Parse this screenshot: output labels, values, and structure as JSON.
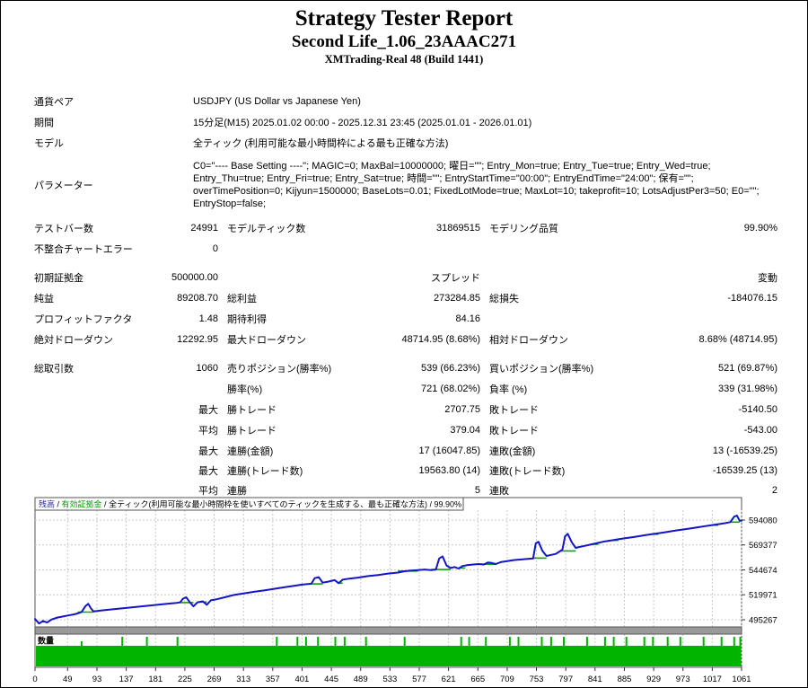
{
  "header": {
    "title": "Strategy Tester Report",
    "subtitle": "Second Life_1.06_23AAAC271",
    "server": "XMTrading-Real 48 (Build 1441)"
  },
  "info_rows": [
    {
      "label": "通貨ペア",
      "value": "USDJPY (US Dollar vs Japanese Yen)"
    },
    {
      "label": "期間",
      "value": "15分足(M15) 2025.01.02 00:00 - 2025.12.31 23:45 (2025.01.01 - 2026.01.01)"
    },
    {
      "label": "モデル",
      "value": "全ティック (利用可能な最小時間枠による最も正確な方法)"
    }
  ],
  "parameters": {
    "label": "パラメーター",
    "lines": [
      "C0=\"---- Base Setting ----\"; MAGIC=0; MaxBal=10000000; 曜日=\"\"; Entry_Mon=true; Entry_Tue=true; Entry_Wed=true;",
      "Entry_Thu=true; Entry_Fri=true; Entry_Sat=true; 時間=\"\"; EntryStartTime=\"00:00\"; EntryEndTime=\"24:00\"; 保有=\"\";",
      "overTimePosition=0; Kijyun=1500000; BaseLots=0.01; FixedLotMode=true; MaxLot=10; takeprofit=10; LotsAdjustPer3=50; E0=\"\";",
      "EntryStop=false;"
    ]
  },
  "stat_rows": [
    {
      "cells": [
        "テストバー数",
        "24991",
        "モデルティック数",
        "31869515",
        "モデリング品質",
        "99.90%"
      ]
    },
    {
      "cells": [
        "不整合チャートエラー",
        "0",
        "",
        "",
        "",
        ""
      ]
    },
    {
      "gap": true,
      "cells": [
        "初期証拠金",
        "500000.00",
        "",
        "スプレッド",
        "",
        "変動"
      ]
    },
    {
      "cells": [
        "純益",
        "89208.70",
        "総利益",
        "273284.85",
        "総損失",
        "-184076.15"
      ]
    },
    {
      "cells": [
        "プロフィットファクタ",
        "1.48",
        "期待利得",
        "84.16",
        "",
        ""
      ]
    },
    {
      "cells": [
        "絶対ドローダウン",
        "12292.95",
        "最大ドローダウン",
        "48714.95 (8.68%)",
        "相対ドローダウン",
        "8.68% (48714.95)"
      ]
    },
    {
      "gap": true,
      "cells": [
        "総取引数",
        "1060",
        "売りポジション(勝率%)",
        "539 (66.23%)",
        "買いポジション(勝率%)",
        "521 (69.87%)"
      ]
    },
    {
      "cells": [
        "",
        "",
        "勝率(%)",
        "721 (68.02%)",
        "負率 (%)",
        "339 (31.98%)"
      ]
    },
    {
      "cells": [
        "",
        "最大",
        "勝トレード",
        "2707.75",
        "敗トレード",
        "-5140.50"
      ]
    },
    {
      "cells": [
        "",
        "平均",
        "勝トレード",
        "379.04",
        "敗トレード",
        "-543.00"
      ]
    },
    {
      "cells": [
        "",
        "最大",
        "連勝(金額)",
        "17 (16047.85)",
        "連敗(金額)",
        "13 (-16539.25)"
      ]
    },
    {
      "short": true,
      "cells": [
        "",
        "最大",
        "連勝(トレード数)",
        "19563.80 (14)",
        "連敗(トレード数)",
        "-16539.25 (13)"
      ]
    },
    {
      "short": true,
      "cells": [
        "",
        "平均",
        "連勝",
        "5",
        "連敗",
        "2"
      ]
    }
  ],
  "chart_data": {
    "type": "line",
    "legend": {
      "balance_label": "残高",
      "equity_label": "有効証拠金",
      "model_label": "全ティック(利用可能な最小時間枠を使いすべてのティックを生成する、最も正確な方法)",
      "quality": "99.90%",
      "separator": " / "
    },
    "volume_label": "数量",
    "y_ticks": [
      594080,
      569377,
      544674,
      519971,
      495267
    ],
    "x_ticks": [
      0,
      49,
      93,
      137,
      181,
      225,
      269,
      313,
      357,
      401,
      445,
      489,
      533,
      577,
      621,
      665,
      709,
      753,
      797,
      841,
      885,
      929,
      973,
      1017,
      1061
    ],
    "x_max": 1061,
    "balance_series": [
      [
        0,
        496000
      ],
      [
        6,
        491500
      ],
      [
        12,
        494000
      ],
      [
        18,
        492500
      ],
      [
        25,
        495500
      ],
      [
        34,
        497500
      ],
      [
        42,
        498500
      ],
      [
        50,
        499500
      ],
      [
        58,
        500500
      ],
      [
        64,
        501500
      ],
      [
        70,
        503000
      ],
      [
        76,
        509000
      ],
      [
        80,
        511000
      ],
      [
        84,
        506500
      ],
      [
        88,
        503500
      ],
      [
        100,
        504500
      ],
      [
        115,
        505500
      ],
      [
        130,
        506500
      ],
      [
        145,
        507500
      ],
      [
        160,
        508500
      ],
      [
        175,
        509500
      ],
      [
        190,
        510500
      ],
      [
        205,
        511500
      ],
      [
        213,
        512000
      ],
      [
        218,
        512500
      ],
      [
        222,
        516000
      ],
      [
        227,
        517500
      ],
      [
        232,
        513000
      ],
      [
        238,
        508500
      ],
      [
        244,
        512500
      ],
      [
        252,
        513500
      ],
      [
        258,
        510000
      ],
      [
        264,
        514500
      ],
      [
        272,
        515500
      ],
      [
        285,
        517500
      ],
      [
        300,
        520000
      ],
      [
        315,
        521500
      ],
      [
        330,
        523000
      ],
      [
        345,
        524500
      ],
      [
        360,
        526000
      ],
      [
        375,
        527500
      ],
      [
        390,
        529000
      ],
      [
        400,
        530000
      ],
      [
        408,
        530500
      ],
      [
        415,
        531000
      ],
      [
        420,
        536500
      ],
      [
        426,
        537500
      ],
      [
        432,
        532000
      ],
      [
        440,
        533000
      ],
      [
        450,
        534500
      ],
      [
        456,
        531500
      ],
      [
        462,
        535000
      ],
      [
        472,
        536000
      ],
      [
        485,
        537000
      ],
      [
        500,
        538500
      ],
      [
        515,
        539500
      ],
      [
        530,
        541000
      ],
      [
        545,
        542000
      ],
      [
        555,
        543300
      ],
      [
        565,
        544000
      ],
      [
        575,
        544500
      ],
      [
        585,
        545000
      ],
      [
        595,
        544500
      ],
      [
        602,
        545000
      ],
      [
        607,
        556000
      ],
      [
        612,
        558000
      ],
      [
        618,
        549000
      ],
      [
        624,
        546500
      ],
      [
        630,
        547500
      ],
      [
        636,
        546000
      ],
      [
        642,
        548500
      ],
      [
        650,
        549500
      ],
      [
        658,
        550000
      ],
      [
        666,
        550500
      ],
      [
        674,
        550000
      ],
      [
        680,
        552000
      ],
      [
        686,
        551500
      ],
      [
        692,
        550500
      ],
      [
        700,
        552500
      ],
      [
        710,
        553500
      ],
      [
        720,
        554500
      ],
      [
        730,
        555000
      ],
      [
        740,
        555500
      ],
      [
        748,
        556000
      ],
      [
        752,
        571000
      ],
      [
        756,
        572500
      ],
      [
        762,
        563500
      ],
      [
        768,
        558500
      ],
      [
        775,
        559500
      ],
      [
        782,
        560500
      ],
      [
        788,
        563000
      ],
      [
        792,
        565000
      ],
      [
        796,
        578000
      ],
      [
        800,
        580500
      ],
      [
        806,
        572000
      ],
      [
        812,
        566500
      ],
      [
        818,
        567500
      ],
      [
        826,
        568500
      ],
      [
        836,
        570000
      ],
      [
        846,
        571500
      ],
      [
        856,
        573000
      ],
      [
        866,
        574000
      ],
      [
        876,
        575000
      ],
      [
        886,
        576000
      ],
      [
        896,
        577000
      ],
      [
        906,
        578000
      ],
      [
        916,
        579000
      ],
      [
        926,
        580000
      ],
      [
        936,
        581000
      ],
      [
        946,
        582000
      ],
      [
        956,
        583000
      ],
      [
        966,
        584000
      ],
      [
        976,
        585000
      ],
      [
        986,
        586000
      ],
      [
        996,
        587000
      ],
      [
        1006,
        588000
      ],
      [
        1016,
        589000
      ],
      [
        1026,
        590000
      ],
      [
        1036,
        591000
      ],
      [
        1044,
        592000
      ],
      [
        1050,
        597500
      ],
      [
        1054,
        598500
      ],
      [
        1058,
        593500
      ],
      [
        1061,
        593500
      ]
    ],
    "equity_segments": [
      [
        64,
        88,
        502800
      ],
      [
        218,
        238,
        512300
      ],
      [
        244,
        258,
        512800
      ],
      [
        415,
        432,
        530800
      ],
      [
        456,
        462,
        531500
      ],
      [
        545,
        575,
        543500
      ],
      [
        595,
        624,
        545000
      ],
      [
        636,
        646,
        546500
      ],
      [
        666,
        692,
        550300
      ],
      [
        748,
        768,
        556300
      ],
      [
        788,
        812,
        563500
      ],
      [
        836,
        846,
        570000
      ],
      [
        866,
        876,
        574000
      ],
      [
        926,
        936,
        580000
      ],
      [
        1016,
        1026,
        589000
      ],
      [
        1044,
        1058,
        592000
      ]
    ],
    "volume_spikes": [
      [
        70,
        0.5
      ],
      [
        131,
        1
      ],
      [
        168,
        1
      ],
      [
        214,
        1
      ],
      [
        363,
        1
      ],
      [
        394,
        1
      ],
      [
        407,
        1
      ],
      [
        425,
        1
      ],
      [
        451,
        1
      ],
      [
        465,
        1
      ],
      [
        497,
        1
      ],
      [
        555,
        1
      ],
      [
        640,
        1
      ],
      [
        652,
        1
      ],
      [
        677,
        1
      ],
      [
        713,
        1
      ],
      [
        726,
        1
      ],
      [
        761,
        1
      ],
      [
        775,
        1
      ],
      [
        794,
        1
      ],
      [
        829,
        1
      ],
      [
        856,
        1
      ],
      [
        869,
        1
      ],
      [
        888,
        1
      ],
      [
        915,
        1
      ],
      [
        928,
        1
      ],
      [
        950,
        1
      ],
      [
        969,
        1
      ],
      [
        1004,
        1
      ],
      [
        1031,
        1
      ],
      [
        1050,
        1
      ],
      [
        1059,
        1
      ]
    ],
    "colors": {
      "balance_line": "#1414c8",
      "equity": "#00a800",
      "volume": "#00b400",
      "grid": "#c9c9c9",
      "legend_balance": "#222299",
      "legend_equity": "#00a000",
      "chart_border": "#555555",
      "splitter": "#9a9a9a"
    }
  }
}
